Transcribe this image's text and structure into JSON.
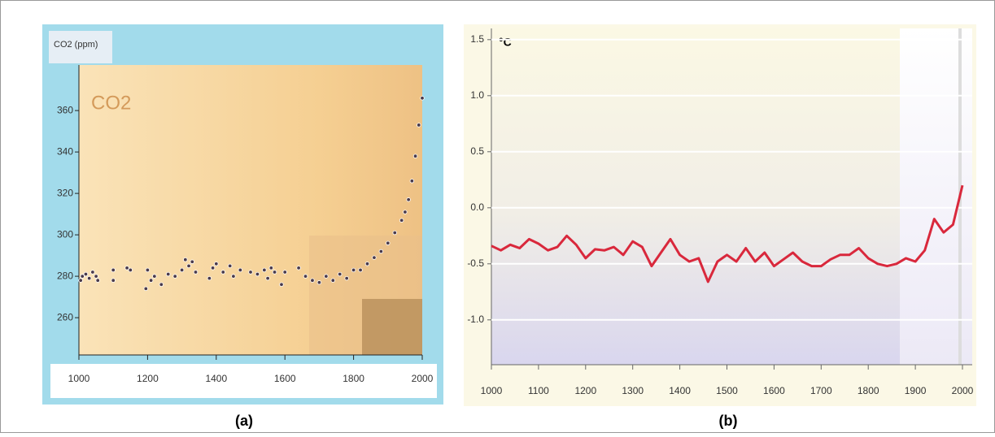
{
  "chart_data": [
    {
      "type": "scatter",
      "caption": "(a)",
      "y_label": "CO2 (ppm)",
      "annotation": "CO2",
      "color": "#4a3a4a",
      "x": [
        1005,
        1010,
        1020,
        1030,
        1040,
        1050,
        1055,
        1100,
        1100,
        1140,
        1150,
        1195,
        1200,
        1210,
        1220,
        1240,
        1260,
        1280,
        1300,
        1310,
        1320,
        1330,
        1340,
        1380,
        1390,
        1400,
        1420,
        1440,
        1450,
        1470,
        1500,
        1520,
        1540,
        1550,
        1560,
        1570,
        1590,
        1600,
        1640,
        1660,
        1680,
        1700,
        1720,
        1740,
        1760,
        1780,
        1800,
        1820,
        1840,
        1860,
        1880,
        1900,
        1920,
        1940,
        1950,
        1960,
        1970,
        1980,
        1990,
        2000
      ],
      "values": [
        278,
        280,
        281,
        279,
        282,
        280,
        278,
        283,
        278,
        284,
        283,
        274,
        283,
        278,
        280,
        276,
        281,
        280,
        283,
        288,
        285,
        287,
        282,
        279,
        284,
        286,
        282,
        285,
        280,
        283,
        282,
        281,
        283,
        279,
        284,
        282,
        276,
        282,
        284,
        280,
        278,
        277,
        280,
        278,
        281,
        279,
        283,
        283,
        286,
        289,
        292,
        296,
        301,
        307,
        311,
        317,
        326,
        338,
        353,
        366
      ],
      "xlim": [
        1000,
        2000
      ],
      "xticks": [
        1000,
        1200,
        1400,
        1600,
        1800,
        2000
      ],
      "ylim": [
        242,
        382
      ],
      "yticks": [
        260,
        280,
        300,
        320,
        340,
        360
      ]
    },
    {
      "type": "line",
      "caption": "(b)",
      "y_label": "°C",
      "color": "#d9283c",
      "x": [
        1000,
        1020,
        1040,
        1060,
        1080,
        1100,
        1120,
        1140,
        1160,
        1180,
        1200,
        1220,
        1240,
        1260,
        1280,
        1300,
        1320,
        1340,
        1360,
        1380,
        1400,
        1420,
        1440,
        1460,
        1480,
        1500,
        1520,
        1540,
        1560,
        1580,
        1600,
        1620,
        1640,
        1660,
        1680,
        1700,
        1720,
        1740,
        1760,
        1780,
        1800,
        1820,
        1840,
        1860,
        1880,
        1900,
        1920,
        1940,
        1960,
        1980,
        2000
      ],
      "values": [
        -0.34,
        -0.38,
        -0.33,
        -0.36,
        -0.28,
        -0.32,
        -0.38,
        -0.35,
        -0.25,
        -0.33,
        -0.45,
        -0.37,
        -0.38,
        -0.35,
        -0.42,
        -0.3,
        -0.35,
        -0.52,
        -0.4,
        -0.28,
        -0.42,
        -0.48,
        -0.45,
        -0.66,
        -0.48,
        -0.42,
        -0.48,
        -0.36,
        -0.48,
        -0.4,
        -0.52,
        -0.46,
        -0.4,
        -0.48,
        -0.52,
        -0.52,
        -0.46,
        -0.42,
        -0.42,
        -0.36,
        -0.45,
        -0.5,
        -0.52,
        -0.5,
        -0.45,
        -0.48,
        -0.38,
        -0.1,
        -0.22,
        -0.15,
        0.2
      ],
      "xlim": [
        1000,
        2000
      ],
      "xticks": [
        1000,
        1100,
        1200,
        1300,
        1400,
        1500,
        1600,
        1700,
        1800,
        1900,
        2000
      ],
      "ylim": [
        -1.4,
        1.6
      ],
      "yticks": [
        {
          "value": -1,
          "label": "-1.0"
        },
        -0.5,
        {
          "value": 0,
          "label": "0.0"
        },
        0.5,
        {
          "value": 1,
          "label": "1.0"
        },
        1.5
      ],
      "grid": true
    }
  ]
}
